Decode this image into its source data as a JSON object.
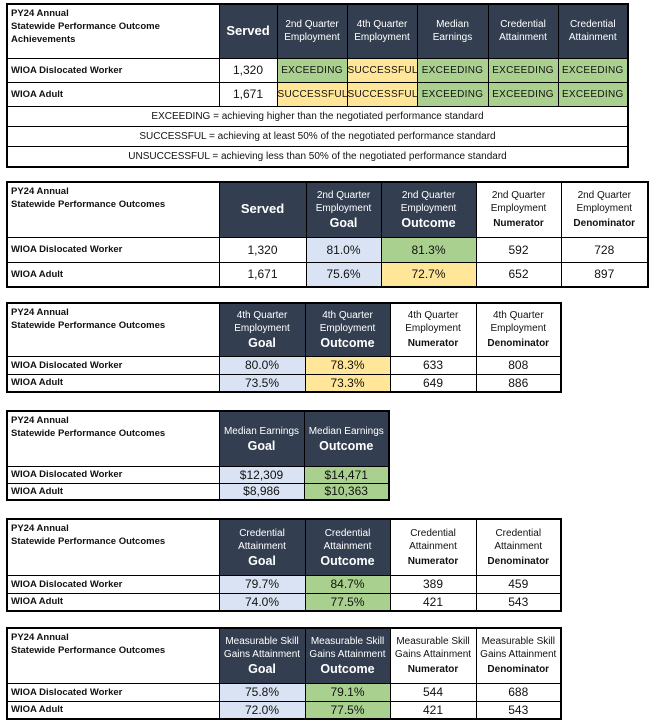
{
  "colors": {
    "header_dark": "#333f50",
    "exceeding": "#a9d08e",
    "successful": "#ffe699",
    "goal": "#dae3f3"
  },
  "tables": [
    {
      "title": [
        "PY24 Annual",
        "Statewide Performance Outcome",
        "Achievements"
      ],
      "headers": [
        {
          "text": "",
          "bold": "Served",
          "style": "dark"
        },
        {
          "text": "2nd Quarter Employment",
          "bold": "",
          "style": "dark"
        },
        {
          "text": "4th Quarter Employment",
          "bold": "",
          "style": "dark"
        },
        {
          "text": "Median Earnings",
          "bold": "",
          "style": "dark"
        },
        {
          "text": "Credential Attainment",
          "bold": "",
          "style": "dark"
        },
        {
          "text": "Credential Attainment",
          "bold": "",
          "style": "dark"
        }
      ],
      "rows": [
        {
          "label": "WIOA Dislocated Worker",
          "cells": [
            {
              "v": "1,320",
              "c": ""
            },
            {
              "v": "EXCEEDING",
              "c": "green"
            },
            {
              "v": "SUCCESSFUL",
              "c": "yellow"
            },
            {
              "v": "EXCEEDING",
              "c": "green"
            },
            {
              "v": "EXCEEDING",
              "c": "green"
            },
            {
              "v": "EXCEEDING",
              "c": "green"
            }
          ]
        },
        {
          "label": "WIOA Adult",
          "cells": [
            {
              "v": "1,671",
              "c": ""
            },
            {
              "v": "SUCCESSFUL",
              "c": "yellow"
            },
            {
              "v": "SUCCESSFUL",
              "c": "yellow"
            },
            {
              "v": "EXCEEDING",
              "c": "green"
            },
            {
              "v": "EXCEEDING",
              "c": "green"
            },
            {
              "v": "EXCEEDING",
              "c": "green"
            }
          ]
        }
      ],
      "legend": [
        "EXCEEDING = achieving higher than the negotiated performance standard",
        "SUCCESSFUL = achieving at least 50% of the negotiated performance standard",
        "UNSUCCESSFUL = achieving less than 50% of the negotiated performance standard"
      ]
    },
    {
      "title": [
        "PY24 Annual",
        "Statewide Performance Outcomes"
      ],
      "headers": [
        {
          "text": "",
          "bold": "Served",
          "style": "dark"
        },
        {
          "text": "2nd Quarter Employment",
          "bold": "Goal",
          "style": "dark"
        },
        {
          "text": "2nd Quarter Employment",
          "bold": "Outcome",
          "style": "dark"
        },
        {
          "text": "2nd Quarter Employment",
          "bold": "Numerator",
          "style": "white"
        },
        {
          "text": "2nd Quarter Employment",
          "bold": "Denominator",
          "style": "white"
        }
      ],
      "rows": [
        {
          "label": "WIOA Dislocated Worker",
          "cells": [
            {
              "v": "1,320",
              "c": ""
            },
            {
              "v": "81.0%",
              "c": "blue"
            },
            {
              "v": "81.3%",
              "c": "green"
            },
            {
              "v": "592",
              "c": ""
            },
            {
              "v": "728",
              "c": ""
            }
          ]
        },
        {
          "label": "WIOA Adult",
          "cells": [
            {
              "v": "1,671",
              "c": ""
            },
            {
              "v": "75.6%",
              "c": "blue"
            },
            {
              "v": "72.7%",
              "c": "yellow"
            },
            {
              "v": "652",
              "c": ""
            },
            {
              "v": "897",
              "c": ""
            }
          ]
        }
      ]
    },
    {
      "title": [
        "PY24 Annual",
        "Statewide Performance Outcomes"
      ],
      "headers": [
        {
          "text": "4th Quarter Employment",
          "bold": "Goal",
          "style": "dark"
        },
        {
          "text": "4th Quarter Employment",
          "bold": "Outcome",
          "style": "dark"
        },
        {
          "text": "4th Quarter Employment",
          "bold": "Numerator",
          "style": "white"
        },
        {
          "text": "4th Quarter Employment",
          "bold": "Denominator",
          "style": "white"
        }
      ],
      "rows": [
        {
          "label": "WIOA Dislocated Worker",
          "cells": [
            {
              "v": "80.0%",
              "c": "blue"
            },
            {
              "v": "78.3%",
              "c": "yellow"
            },
            {
              "v": "633",
              "c": ""
            },
            {
              "v": "808",
              "c": ""
            }
          ]
        },
        {
          "label": "WIOA Adult",
          "cells": [
            {
              "v": "73.5%",
              "c": "blue"
            },
            {
              "v": "73.3%",
              "c": "yellow"
            },
            {
              "v": "649",
              "c": ""
            },
            {
              "v": "886",
              "c": ""
            }
          ]
        }
      ]
    },
    {
      "title": [
        "PY24 Annual",
        "Statewide Performance Outcomes"
      ],
      "headers": [
        {
          "text": "Median Earnings",
          "bold": "Goal",
          "style": "dark"
        },
        {
          "text": "Median Earnings",
          "bold": "Outcome",
          "style": "dark"
        }
      ],
      "rows": [
        {
          "label": "WIOA Dislocated Worker",
          "cells": [
            {
              "v": "$12,309",
              "c": "blue"
            },
            {
              "v": "$14,471",
              "c": "green"
            }
          ]
        },
        {
          "label": "WIOA Adult",
          "cells": [
            {
              "v": "$8,986",
              "c": "blue"
            },
            {
              "v": "$10,363",
              "c": "green"
            }
          ]
        }
      ]
    },
    {
      "title": [
        "PY24 Annual",
        "Statewide Performance Outcomes"
      ],
      "headers": [
        {
          "text": "Credential Attainment",
          "bold": "Goal",
          "style": "dark"
        },
        {
          "text": "Credential Attainment",
          "bold": "Outcome",
          "style": "dark"
        },
        {
          "text": "Credential Attainment",
          "bold": "Numerator",
          "style": "white"
        },
        {
          "text": "Credential Attainment",
          "bold": "Denominator",
          "style": "white"
        }
      ],
      "rows": [
        {
          "label": "WIOA Dislocated Worker",
          "cells": [
            {
              "v": "79.7%",
              "c": "blue"
            },
            {
              "v": "84.7%",
              "c": "green"
            },
            {
              "v": "389",
              "c": ""
            },
            {
              "v": "459",
              "c": ""
            }
          ]
        },
        {
          "label": "WIOA Adult",
          "cells": [
            {
              "v": "74.0%",
              "c": "blue"
            },
            {
              "v": "77.5%",
              "c": "green"
            },
            {
              "v": "421",
              "c": ""
            },
            {
              "v": "543",
              "c": ""
            }
          ]
        }
      ]
    },
    {
      "title": [
        "PY24 Annual",
        "Statewide Performance Outcomes"
      ],
      "headers": [
        {
          "text": "Measurable Skill Gains Attainment",
          "bold": "Goal",
          "style": "dark"
        },
        {
          "text": "Measurable Skill Gains Attainment",
          "bold": "Outcome",
          "style": "dark"
        },
        {
          "text": "Measurable Skill Gains Attainment",
          "bold": "Numerator",
          "style": "white"
        },
        {
          "text": "Measurable Skill Gains Attainment",
          "bold": "Denominator",
          "style": "white"
        }
      ],
      "rows": [
        {
          "label": "WIOA Dislocated Worker",
          "cells": [
            {
              "v": "75.8%",
              "c": "blue"
            },
            {
              "v": "79.1%",
              "c": "green"
            },
            {
              "v": "544",
              "c": ""
            },
            {
              "v": "688",
              "c": ""
            }
          ]
        },
        {
          "label": "WIOA Adult",
          "cells": [
            {
              "v": "72.0%",
              "c": "blue"
            },
            {
              "v": "77.5%",
              "c": "green"
            },
            {
              "v": "421",
              "c": ""
            },
            {
              "v": "543",
              "c": ""
            }
          ]
        }
      ]
    }
  ]
}
